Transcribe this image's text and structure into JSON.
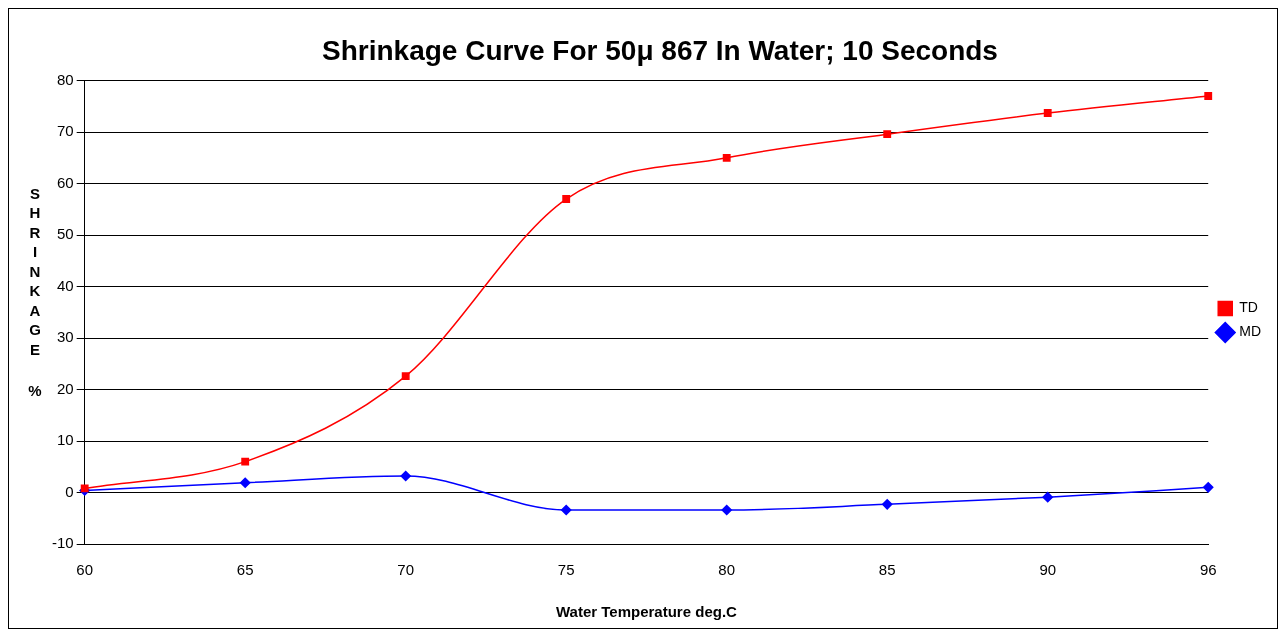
{
  "chart_data": {
    "type": "line",
    "title": "Shrinkage Curve For 50μ 867 In Water; 10 Seconds",
    "xlabel": "Water Temperature deg.C",
    "ylabel": "SHRINKAGE %",
    "categories": [
      "60",
      "65",
      "70",
      "75",
      "80",
      "85",
      "90",
      "96"
    ],
    "series": [
      {
        "name": "MD",
        "color": "#0000ff",
        "marker": "diamond",
        "values": [
          0.4,
          1.9,
          3.2,
          -3.4,
          -3.4,
          -2.3,
          -0.9,
          1.0
        ]
      },
      {
        "name": "TD",
        "color": "#ff0000",
        "marker": "square",
        "values": [
          0.8,
          6,
          22.6,
          57,
          65,
          69.6,
          73.7,
          77
        ]
      }
    ],
    "ylim": [
      -10,
      80
    ],
    "yticks": [
      -10,
      0,
      10,
      20,
      30,
      40,
      50,
      60,
      70,
      80
    ],
    "grid": "y",
    "legend": "right",
    "line_style": "solid"
  }
}
